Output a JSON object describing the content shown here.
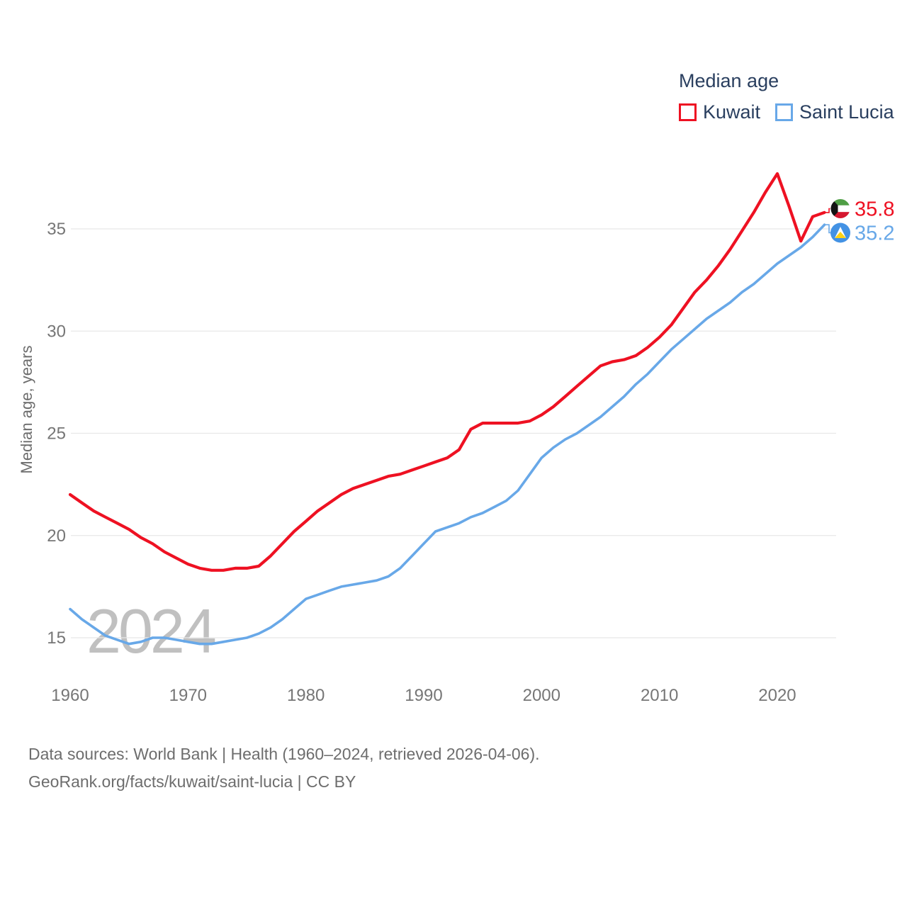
{
  "legend": {
    "title": "Median age",
    "items": [
      {
        "label": "Kuwait",
        "color": "#ee1122"
      },
      {
        "label": "Saint Lucia",
        "color": "#68a8e8"
      }
    ]
  },
  "chart_data": {
    "type": "line",
    "title": "Median age",
    "xlabel": "",
    "ylabel": "Median age, years",
    "x": [
      1960,
      1961,
      1962,
      1963,
      1964,
      1965,
      1966,
      1967,
      1968,
      1969,
      1970,
      1971,
      1972,
      1973,
      1974,
      1975,
      1976,
      1977,
      1978,
      1979,
      1980,
      1981,
      1982,
      1983,
      1984,
      1985,
      1986,
      1987,
      1988,
      1989,
      1990,
      1991,
      1992,
      1993,
      1994,
      1995,
      1996,
      1997,
      1998,
      1999,
      2000,
      2001,
      2002,
      2003,
      2004,
      2005,
      2006,
      2007,
      2008,
      2009,
      2010,
      2011,
      2012,
      2013,
      2014,
      2015,
      2016,
      2017,
      2018,
      2019,
      2020,
      2021,
      2022,
      2023,
      2024
    ],
    "series": [
      {
        "name": "Kuwait",
        "color": "#ee1122",
        "end_label": "35.8",
        "flag": "kuwait",
        "values": [
          22.0,
          21.6,
          21.2,
          20.9,
          20.6,
          20.3,
          19.9,
          19.6,
          19.2,
          18.9,
          18.6,
          18.4,
          18.3,
          18.3,
          18.4,
          18.4,
          18.5,
          19.0,
          19.6,
          20.2,
          20.7,
          21.2,
          21.6,
          22.0,
          22.3,
          22.5,
          22.7,
          22.9,
          23.0,
          23.2,
          23.4,
          23.6,
          23.8,
          24.2,
          25.2,
          25.5,
          25.5,
          25.5,
          25.5,
          25.6,
          25.9,
          26.3,
          26.8,
          27.3,
          27.8,
          28.3,
          28.5,
          28.6,
          28.8,
          29.2,
          29.7,
          30.3,
          31.1,
          31.9,
          32.5,
          33.2,
          34.0,
          34.9,
          35.8,
          36.8,
          37.7,
          36.1,
          34.4,
          35.6,
          35.8
        ]
      },
      {
        "name": "Saint Lucia",
        "color": "#68a8e8",
        "end_label": "35.2",
        "flag": "saint-lucia",
        "values": [
          16.4,
          15.9,
          15.5,
          15.1,
          14.9,
          14.7,
          14.8,
          15.0,
          15.0,
          14.9,
          14.8,
          14.7,
          14.7,
          14.8,
          14.9,
          15.0,
          15.2,
          15.5,
          15.9,
          16.4,
          16.9,
          17.1,
          17.3,
          17.5,
          17.6,
          17.7,
          17.8,
          18.0,
          18.4,
          19.0,
          19.6,
          20.2,
          20.4,
          20.6,
          20.9,
          21.1,
          21.4,
          21.7,
          22.2,
          23.0,
          23.8,
          24.3,
          24.7,
          25.0,
          25.4,
          25.8,
          26.3,
          26.8,
          27.4,
          27.9,
          28.5,
          29.1,
          29.6,
          30.1,
          30.6,
          31.0,
          31.4,
          31.9,
          32.3,
          32.8,
          33.3,
          33.7,
          34.1,
          34.6,
          35.2
        ]
      }
    ],
    "y_ticks": [
      15,
      20,
      25,
      30,
      35
    ],
    "x_ticks": [
      1960,
      1970,
      1980,
      1990,
      2000,
      2010,
      2020
    ],
    "ylim": [
      13.5,
      38.5
    ],
    "xlim": [
      1960,
      2024
    ],
    "grid": "horizontal",
    "legend_position": "top-right",
    "watermark": "2024"
  },
  "footer": {
    "line1": "Data sources: World Bank | Health (1960–2024, retrieved 2026-04-06).",
    "line2": "GeoRank.org/facts/kuwait/saint-lucia | CC BY"
  },
  "style_colors": {
    "gridline": "#e8e8e8",
    "tick_text": "#767676",
    "axis_title_text": "#6d6d6d",
    "legend_text": "#2a3f5f",
    "watermark_text": "#c0c0c0",
    "saint_lucia_flag_blue": "#4392e4",
    "saint_lucia_flag_yellow": "#fcd116",
    "kuwait_flag_green": "#4f9e45",
    "kuwait_flag_red": "#d5172f",
    "kuwait_flag_black": "#141414"
  }
}
